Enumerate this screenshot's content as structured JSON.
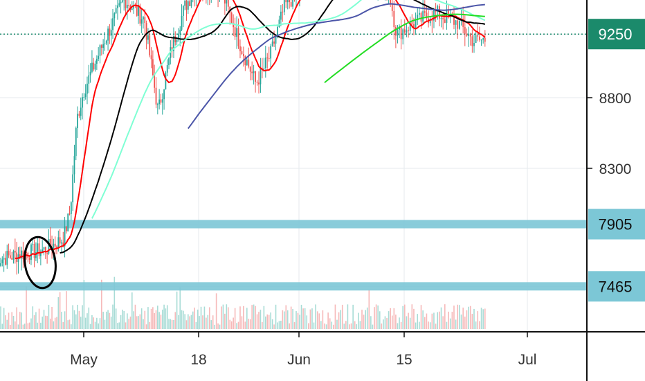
{
  "chart_data": {
    "type": "candlestick",
    "title": "",
    "xlabel": "",
    "ylabel": "",
    "x_ticks": [
      "May",
      "18",
      "Jun",
      "15",
      "Jul"
    ],
    "y_ticks": [
      8300,
      8800
    ],
    "ylim": [
      6900,
      9800
    ],
    "grid": true,
    "current_price": 9250,
    "horizontal_levels": [
      {
        "value": 7905,
        "label": "7905",
        "color": "#7cc7d6"
      },
      {
        "value": 7465,
        "label": "7465",
        "color": "#7cc7d6"
      }
    ],
    "price_tag": {
      "value": 9250,
      "label": "9250",
      "color": "#1b8a6b"
    },
    "colors": {
      "up": "#26a69a",
      "down": "#ef5350",
      "ma_red": "#ff0000",
      "ma_black": "#000000",
      "ma_aqua": "#7fffd4",
      "ma_navy": "#4b55a8",
      "ma_green": "#22dd22",
      "annotation": "#000000"
    },
    "annotations": [
      {
        "type": "ellipse",
        "center_date": "2020-04-26",
        "center_value": 7620
      }
    ]
  }
}
